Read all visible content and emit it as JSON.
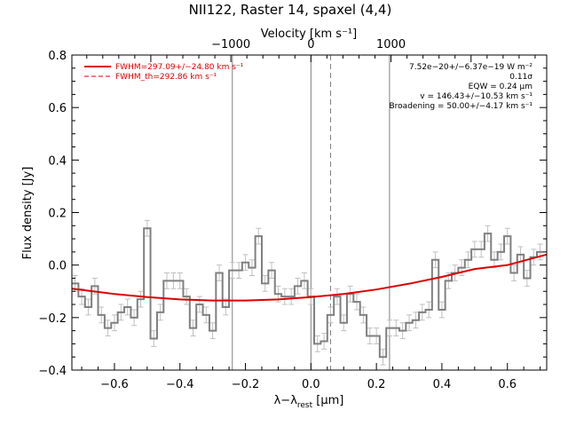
{
  "title": "NII122, Raster 14, spaxel (4,4)",
  "top_axis_label": "Velocity [km s⁻¹]",
  "x_axis_label": "λ−λ",
  "x_axis_label_sub": "rest",
  "x_axis_label_unit": " [μm]",
  "y_axis_label": "Flux density [Jy]",
  "legend": {
    "fit_label": "FWHM=297.09+/−24.80 km s⁻¹",
    "theory_label": "FWHM_th=292.86 km s⁻¹",
    "color": "#dd0000"
  },
  "annotations": [
    "7.52e−20+/−6.37e−19 W m⁻²",
    "0.11σ",
    "EQW = 0.24 μm",
    "v = 146.43+/−10.53 km s⁻¹",
    "Broadening = 50.00+/−4.17 km s⁻¹"
  ],
  "chart_data": {
    "type": "line",
    "xlim": [
      -0.73,
      0.72
    ],
    "ylim": [
      -0.4,
      0.8
    ],
    "x_ticks": [
      -0.6,
      -0.4,
      -0.2,
      0.0,
      0.2,
      0.4,
      0.6
    ],
    "x_tick_labels": [
      "−0.6",
      "−0.4",
      "−0.2",
      "0.0",
      "0.2",
      "0.4",
      "0.6"
    ],
    "y_ticks": [
      -0.4,
      -0.2,
      0.0,
      0.2,
      0.4,
      0.6,
      0.8
    ],
    "y_tick_labels": [
      "−0.4",
      "−0.2",
      "0.0",
      "0.2",
      "0.4",
      "0.6",
      "0.8"
    ],
    "top_axis": {
      "ticks_km_s": [
        -1000,
        0,
        1000
      ],
      "tick_labels": [
        "−1000",
        "0",
        "1000"
      ],
      "km_s_per_um": 4090
    },
    "vertical_lines": [
      {
        "x": -0.24,
        "style": "solid"
      },
      {
        "x": 0.0,
        "style": "solid"
      },
      {
        "x": 0.06,
        "style": "dashed"
      },
      {
        "x": 0.24,
        "style": "solid"
      }
    ],
    "data_series": {
      "name": "",
      "style": "histogram",
      "color": "#808080",
      "x": [
        -0.72,
        -0.7,
        -0.68,
        -0.66,
        -0.64,
        -0.62,
        -0.6,
        -0.58,
        -0.56,
        -0.54,
        -0.52,
        -0.5,
        -0.48,
        -0.46,
        -0.44,
        -0.42,
        -0.4,
        -0.38,
        -0.36,
        -0.34,
        -0.32,
        -0.3,
        -0.28,
        -0.26,
        -0.24,
        -0.22,
        -0.2,
        -0.18,
        -0.16,
        -0.14,
        -0.12,
        -0.1,
        -0.08,
        -0.06,
        -0.04,
        -0.02,
        0.0,
        0.02,
        0.04,
        0.06,
        0.08,
        0.1,
        0.12,
        0.14,
        0.16,
        0.18,
        0.2,
        0.22,
        0.24,
        0.26,
        0.28,
        0.3,
        0.32,
        0.34,
        0.36,
        0.38,
        0.4,
        0.42,
        0.44,
        0.46,
        0.48,
        0.5,
        0.52,
        0.54,
        0.56,
        0.58,
        0.6,
        0.62,
        0.64,
        0.66,
        0.68,
        0.7
      ],
      "y": [
        -0.07,
        -0.12,
        -0.16,
        -0.08,
        -0.19,
        -0.24,
        -0.22,
        -0.18,
        -0.16,
        -0.2,
        -0.13,
        0.14,
        -0.28,
        -0.18,
        -0.06,
        -0.06,
        -0.06,
        -0.12,
        -0.24,
        -0.15,
        -0.19,
        -0.25,
        -0.03,
        -0.16,
        -0.02,
        -0.02,
        0.01,
        -0.01,
        0.11,
        -0.07,
        -0.02,
        -0.11,
        -0.12,
        -0.12,
        -0.08,
        -0.06,
        -0.12,
        -0.3,
        -0.29,
        -0.19,
        -0.12,
        -0.22,
        -0.11,
        -0.14,
        -0.19,
        -0.27,
        -0.27,
        -0.35,
        -0.24,
        -0.24,
        -0.25,
        -0.22,
        -0.21,
        -0.18,
        -0.17,
        0.02,
        -0.17,
        -0.06,
        -0.03,
        -0.01,
        0.02,
        0.06,
        0.06,
        0.12,
        0.02,
        0.05,
        0.11,
        -0.03,
        0.04,
        -0.05,
        0.03,
        0.05
      ],
      "error": 0.03
    },
    "fit_series": {
      "name": "FWHM=297.09+/−24.80 km s⁻¹",
      "color": "#dd0000",
      "x": [
        -0.73,
        -0.6,
        -0.5,
        -0.4,
        -0.3,
        -0.2,
        -0.1,
        0.0,
        0.1,
        0.2,
        0.3,
        0.4,
        0.5,
        0.6,
        0.72
      ],
      "y": [
        -0.09,
        -0.11,
        -0.122,
        -0.131,
        -0.135,
        -0.135,
        -0.131,
        -0.122,
        -0.11,
        -0.093,
        -0.071,
        -0.045,
        -0.015,
        0.0,
        0.04
      ]
    }
  }
}
